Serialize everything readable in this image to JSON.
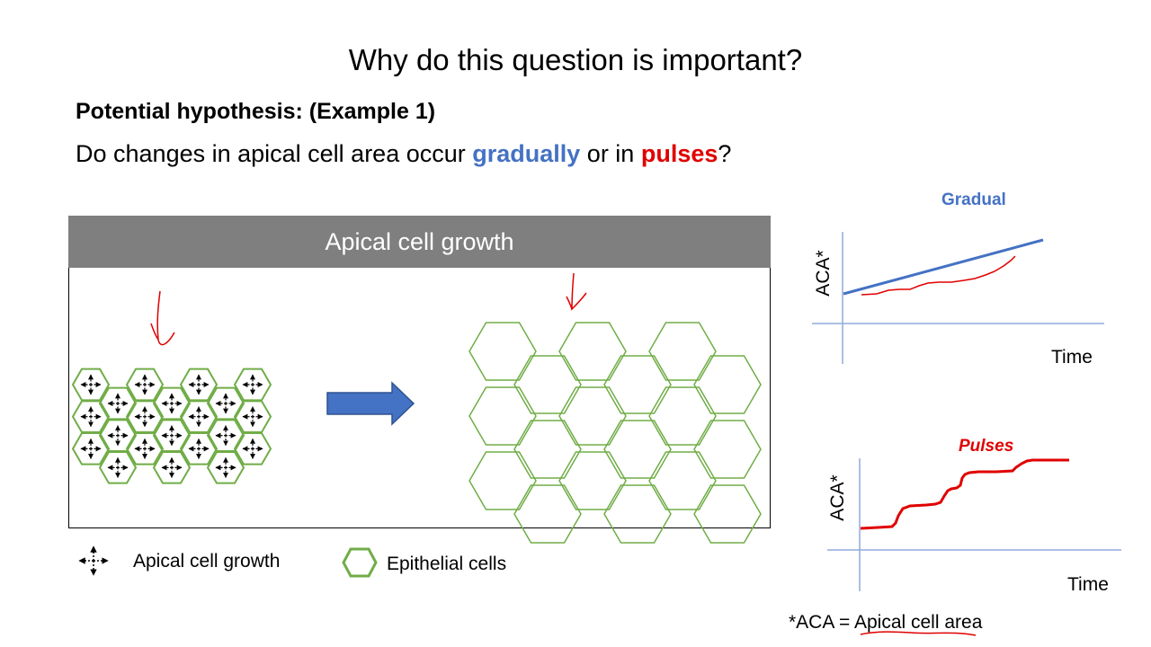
{
  "slide": {
    "title": "Why do this question is important?",
    "hypothesis_heading": "Potential hypothesis: (Example 1)",
    "question": {
      "prefix": "Do changes in apical cell area occur ",
      "gradual_word": "gradually",
      "middle": " or in ",
      "pulse_word": "pulses",
      "suffix": "?"
    }
  },
  "diagram": {
    "header": "Apical cell growth",
    "legend": {
      "growth_label": "Apical cell growth",
      "cells_label": "Epithelial cells"
    }
  },
  "plots": {
    "gradual": {
      "title": "Gradual",
      "y_label": "ACA*",
      "x_label": "Time"
    },
    "pulses": {
      "title": "Pulses",
      "y_label": "ACA*",
      "x_label": "Time"
    }
  },
  "footnote": {
    "prefix": "*ACA = ",
    "term": "Apical cell area"
  },
  "colors": {
    "gradual": "#4472c4",
    "pulse": "#e00000",
    "cell_outline": "#70ad47",
    "arrow": "#4472c4",
    "header_bg": "#7f7f7f"
  }
}
